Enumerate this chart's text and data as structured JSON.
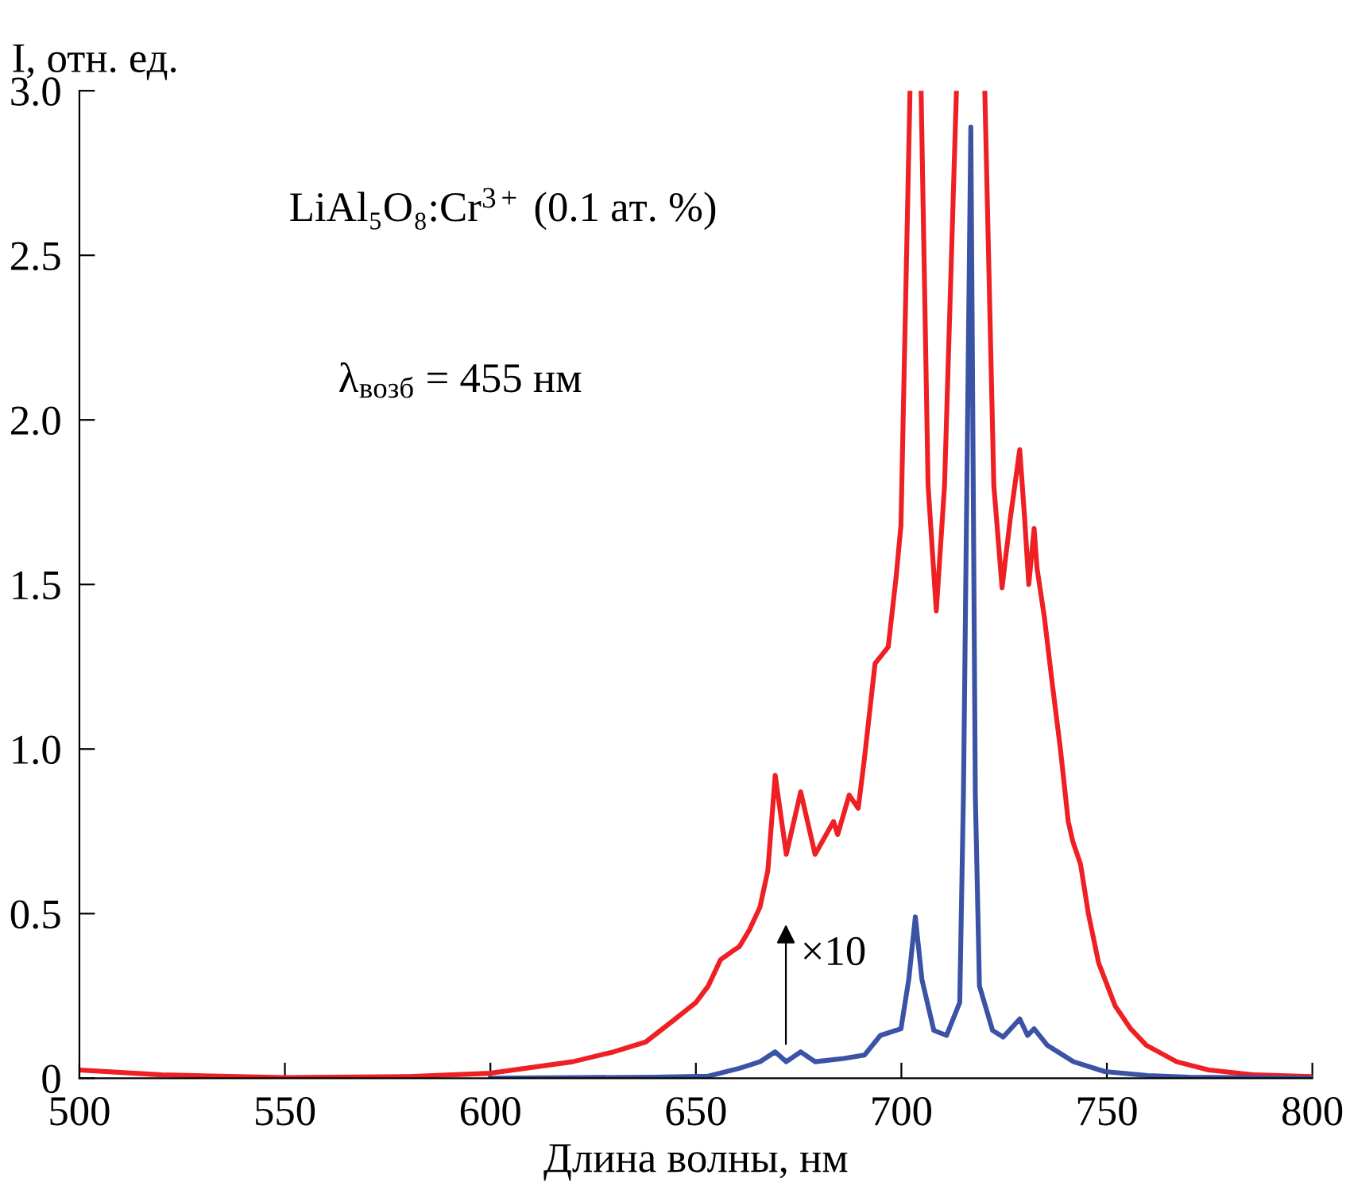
{
  "chart_data": {
    "type": "line",
    "xlabel": "Длина волны, нм",
    "ylabel": "I, отн. ед.",
    "xlim": [
      500,
      800
    ],
    "xticks": [
      500,
      550,
      600,
      650,
      700,
      750,
      800
    ],
    "ylim": [
      0,
      3.0
    ],
    "yticks": [
      {
        "value": 0,
        "label": "0"
      },
      0.5,
      {
        "value": 1,
        "label": "1.0"
      },
      1.5,
      {
        "value": 2,
        "label": "2.0"
      },
      2.5,
      {
        "value": 3,
        "label": "3.0"
      }
    ],
    "grid": false,
    "marker": "none",
    "line_style": "solid",
    "series": [
      {
        "color": "#ee2024",
        "x": [
          500,
          520,
          550,
          580,
          600,
          620,
          630,
          637.8,
          645,
          650,
          653,
          656,
          659.4,
          660.6,
          663,
          665.6,
          667.5,
          669.3,
          672,
          675.5,
          679,
          683.5,
          684.5,
          687.3,
          689.5,
          691,
          693.6,
          696.8,
          698.7,
          699.9,
          702.1,
          null,
          704.8,
          706.5,
          708.5,
          710.5,
          713.4,
          null,
          720.3,
          722.5,
          724.5,
          726.5,
          728.8,
          730,
          731,
          732.3,
          733,
          734.8,
          736.7,
          738.7,
          740.6,
          741.7,
          743.6,
          745.5,
          748,
          752,
          755.8,
          759.6,
          767,
          774.8,
          786,
          800
        ],
        "values": [
          0.025,
          0.01,
          0.002,
          0.005,
          0.015,
          0.05,
          0.08,
          0.11,
          0.18,
          0.23,
          0.28,
          0.36,
          0.39,
          0.4,
          0.45,
          0.52,
          0.63,
          0.92,
          0.68,
          0.87,
          0.68,
          0.78,
          0.74,
          0.86,
          0.82,
          0.97,
          1.26,
          1.31,
          1.52,
          1.68,
          3.0,
          null,
          3.0,
          1.8,
          1.42,
          1.8,
          3.0,
          null,
          3.0,
          1.8,
          1.49,
          1.7,
          1.91,
          1.7,
          1.5,
          1.67,
          1.55,
          1.4,
          1.2,
          1.0,
          0.78,
          0.72,
          0.65,
          0.5,
          0.35,
          0.22,
          0.15,
          0.1,
          0.05,
          0.025,
          0.01,
          0.005
        ]
      },
      {
        "color": "#3a53a4",
        "x": [
          600,
          640,
          653,
          660.6,
          665.6,
          669.3,
          672,
          675.5,
          679,
          686,
          691,
          694.9,
          699.9,
          701.8,
          703.4,
          705,
          707.9,
          711,
          714.2,
          715.1,
          716.9,
          718,
          719,
          722.2,
          724.8,
          728.8,
          730.7,
          732.3,
          735.5,
          741.9,
          749.5,
          760,
          770,
          800
        ],
        "values": [
          0,
          0.003,
          0.006,
          0.03,
          0.05,
          0.08,
          0.05,
          0.08,
          0.05,
          0.06,
          0.07,
          0.13,
          0.15,
          0.3,
          0.49,
          0.3,
          0.145,
          0.13,
          0.23,
          0.86,
          2.89,
          0.86,
          0.28,
          0.145,
          0.125,
          0.18,
          0.13,
          0.15,
          0.1,
          0.05,
          0.02,
          0.008,
          0.003,
          0
        ]
      }
    ],
    "annotations": [
      "LiAl₅O₈:Cr$^{3+}$ (0.1 ат. %)",
      "λ$_{возб}$ = 455 нм",
      "×10"
    ]
  }
}
